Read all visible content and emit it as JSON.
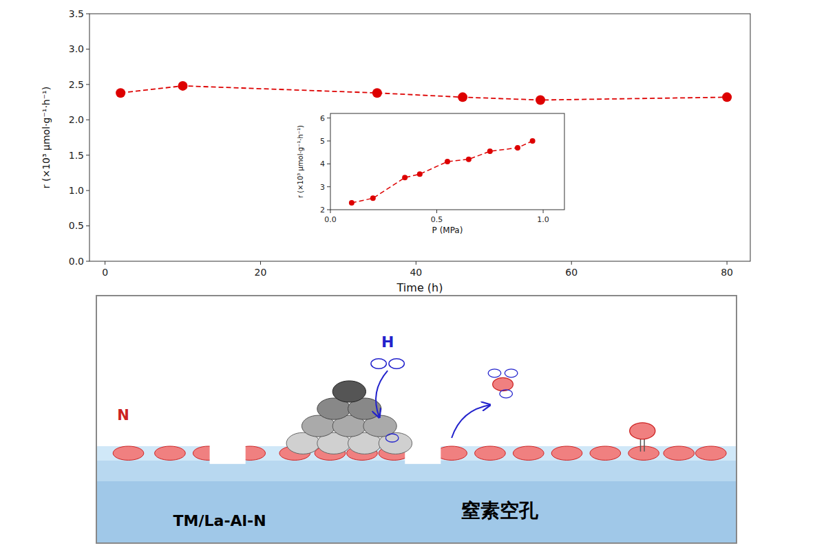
{
  "chart_data": [
    {
      "type": "line",
      "x_label": "Time (h)",
      "y_label": "r (×10³ μmol·g⁻¹·h⁻¹)",
      "x": [
        2,
        10,
        35,
        46,
        56,
        80
      ],
      "series": [
        {
          "values": [
            2.38,
            2.48,
            2.38,
            2.32,
            2.28,
            2.32
          ],
          "color": "#dd0000",
          "marker": "circle",
          "line_style": "dashed"
        }
      ],
      "xlim": [
        -2,
        83
      ],
      "ylim": [
        0.0,
        3.5
      ],
      "xticks": [
        0,
        20,
        40,
        60,
        80
      ],
      "yticks": [
        {
          "value": 0.0,
          "label": "0.0"
        },
        0.5,
        {
          "value": 1.0,
          "label": "1.0"
        },
        1.5,
        {
          "value": 2.0,
          "label": "2.0"
        },
        2.5,
        {
          "value": 3.0,
          "label": "3.0"
        },
        3.5
      ],
      "grid": false,
      "annotations": [
        "N",
        "H",
        "TM/La-Al-N",
        "窒素空孔"
      ]
    },
    {
      "type": "line",
      "x_label": "P (MPa)",
      "y_label": "r (×10³ μmol·g⁻¹·h⁻¹)",
      "x": [
        0.1,
        0.2,
        0.35,
        0.42,
        0.55,
        0.65,
        0.75,
        0.88,
        0.95
      ],
      "series": [
        {
          "values": [
            2.3,
            2.5,
            3.4,
            3.55,
            4.1,
            4.2,
            4.55,
            4.7,
            5.0
          ],
          "color": "#dd0000",
          "marker": "circle",
          "line_style": "dashed"
        }
      ],
      "xlim": [
        0.0,
        1.1
      ],
      "ylim": [
        2.0,
        6.2
      ],
      "xticks": [
        {
          "value": 0.0,
          "label": "0.0"
        },
        0.5,
        {
          "value": 1.0,
          "label": "1.0"
        }
      ],
      "yticks": [
        2,
        3,
        4,
        5,
        6
      ],
      "grid": false
    }
  ]
}
